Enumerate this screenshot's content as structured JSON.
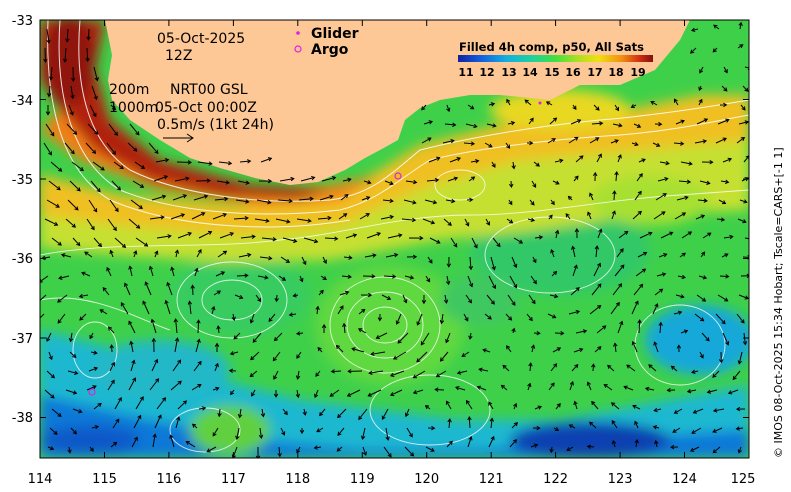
{
  "map": {
    "date_label": "05-Oct-2025",
    "time_label": "12Z",
    "contour_label_1": "200m",
    "contour_label_2": "1000m",
    "product_label": "NRT00 GSL",
    "product_time": "05-Oct 00:00Z",
    "scale_label": "0.5m/s (1kt 24h)",
    "credit": "© IMOS 08-Oct-2025 15:34 Hobart; Tscale=CARS+[-1 1]",
    "land_color": "#fdc896"
  },
  "legend": {
    "glider_label": "Glider",
    "argo_label": "Argo",
    "marker_color": "#e020e0"
  },
  "colorbar": {
    "title": "Filled 4h comp, p50, All Sats",
    "ticks": [
      "11",
      "12",
      "13",
      "14",
      "15",
      "16",
      "17",
      "18",
      "19"
    ]
  },
  "axes": {
    "x_ticks": [
      "114",
      "115",
      "116",
      "117",
      "118",
      "119",
      "120",
      "121",
      "122",
      "123",
      "124",
      "125"
    ],
    "y_ticks": [
      "-33",
      "-34",
      "-35",
      "-36",
      "-37",
      "-38"
    ]
  }
}
